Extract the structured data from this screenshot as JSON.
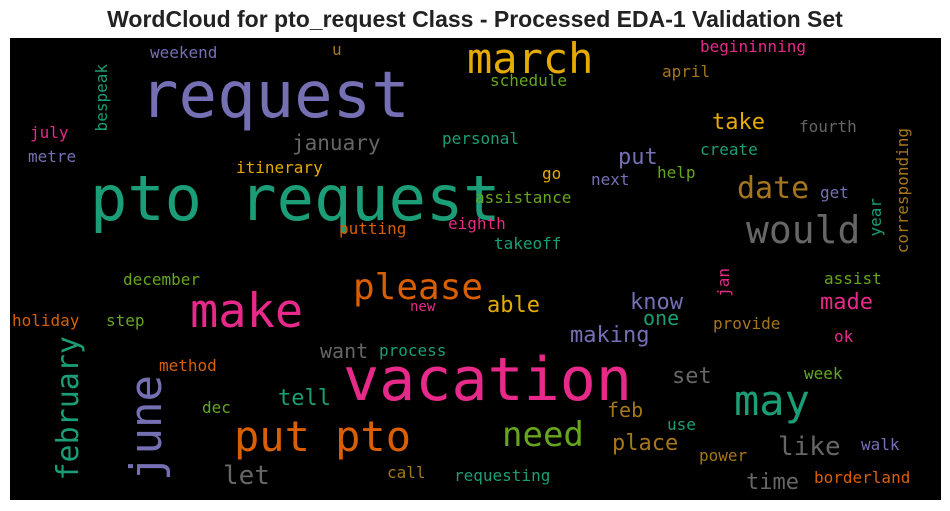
{
  "title": "WordCloud for pto_request Class - Processed EDA-1 Validation Set",
  "colors": {
    "purple": "#7570b3",
    "teal": "#1b9e77",
    "orange": "#d95f02",
    "pink": "#e7298a",
    "green": "#66a61e",
    "gold": "#e6ab02",
    "brown": "#a6761d",
    "gray": "#666666"
  },
  "words": [
    {
      "text": "request",
      "color": "purple"
    },
    {
      "text": "pto request",
      "color": "teal"
    },
    {
      "text": "vacation",
      "color": "pink"
    },
    {
      "text": "march",
      "color": "gold"
    },
    {
      "text": "make",
      "color": "pink"
    },
    {
      "text": "put pto",
      "color": "orange"
    },
    {
      "text": "june",
      "color": "purple"
    },
    {
      "text": "may",
      "color": "teal"
    },
    {
      "text": "would",
      "color": "gray"
    },
    {
      "text": "please",
      "color": "orange"
    },
    {
      "text": "need",
      "color": "green"
    },
    {
      "text": "date",
      "color": "brown"
    },
    {
      "text": "february",
      "color": "teal"
    },
    {
      "text": "like",
      "color": "gray"
    },
    {
      "text": "let",
      "color": "gray"
    },
    {
      "text": "january",
      "color": "gray"
    },
    {
      "text": "put",
      "color": "purple"
    },
    {
      "text": "take",
      "color": "gold"
    },
    {
      "text": "know",
      "color": "purple"
    },
    {
      "text": "able",
      "color": "gold"
    },
    {
      "text": "making",
      "color": "purple"
    },
    {
      "text": "made",
      "color": "pink"
    },
    {
      "text": "want",
      "color": "gray"
    },
    {
      "text": "one",
      "color": "teal"
    },
    {
      "text": "place",
      "color": "brown"
    },
    {
      "text": "set",
      "color": "gray"
    },
    {
      "text": "tell",
      "color": "teal"
    },
    {
      "text": "time",
      "color": "gray"
    },
    {
      "text": "feb",
      "color": "brown"
    },
    {
      "text": "weekend",
      "color": "purple"
    },
    {
      "text": "u",
      "color": "brown"
    },
    {
      "text": "begininning",
      "color": "pink"
    },
    {
      "text": "schedule",
      "color": "green"
    },
    {
      "text": "april",
      "color": "brown"
    },
    {
      "text": "bespeak",
      "color": "teal"
    },
    {
      "text": "july",
      "color": "pink"
    },
    {
      "text": "metre",
      "color": "purple"
    },
    {
      "text": "personal",
      "color": "teal"
    },
    {
      "text": "fourth",
      "color": "gray"
    },
    {
      "text": "create",
      "color": "teal"
    },
    {
      "text": "corresponding",
      "color": "brown"
    },
    {
      "text": "itinerary",
      "color": "gold"
    },
    {
      "text": "go",
      "color": "gold"
    },
    {
      "text": "next",
      "color": "purple"
    },
    {
      "text": "help",
      "color": "green"
    },
    {
      "text": "get",
      "color": "purple"
    },
    {
      "text": "assistance",
      "color": "green"
    },
    {
      "text": "year",
      "color": "teal"
    },
    {
      "text": "putting",
      "color": "orange"
    },
    {
      "text": "eighth",
      "color": "pink"
    },
    {
      "text": "takeoff",
      "color": "teal"
    },
    {
      "text": "december",
      "color": "green"
    },
    {
      "text": "jan",
      "color": "pink"
    },
    {
      "text": "assist",
      "color": "green"
    },
    {
      "text": "holiday",
      "color": "orange"
    },
    {
      "text": "step",
      "color": "green"
    },
    {
      "text": "new",
      "color": "pink"
    },
    {
      "text": "provide",
      "color": "brown"
    },
    {
      "text": "ok",
      "color": "pink"
    },
    {
      "text": "method",
      "color": "orange"
    },
    {
      "text": "process",
      "color": "teal"
    },
    {
      "text": "week",
      "color": "green"
    },
    {
      "text": "dec",
      "color": "green"
    },
    {
      "text": "use",
      "color": "teal"
    },
    {
      "text": "walk",
      "color": "purple"
    },
    {
      "text": "power",
      "color": "brown"
    },
    {
      "text": "call",
      "color": "brown"
    },
    {
      "text": "requesting",
      "color": "teal"
    },
    {
      "text": "borderland",
      "color": "orange"
    }
  ]
}
